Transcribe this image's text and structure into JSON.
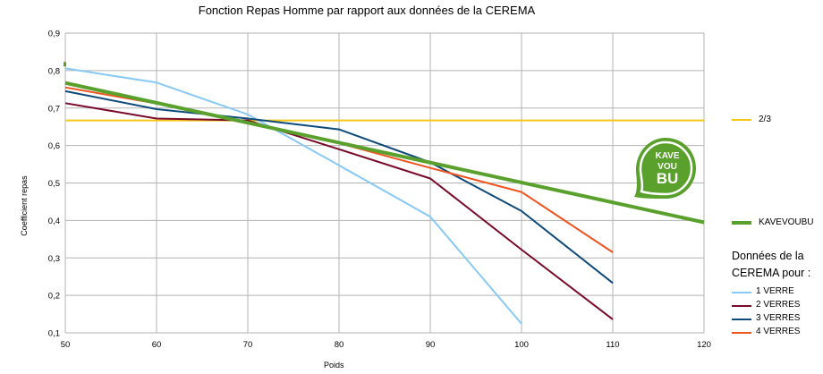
{
  "chart_data": {
    "type": "line",
    "title": "Fonction Repas Homme par rapport aux données de la CEREMA",
    "xlabel": "Poids",
    "ylabel": "Coefficient repas",
    "xlim": [
      50,
      120
    ],
    "ylim": [
      0.1,
      0.9
    ],
    "x_ticks": [
      "50",
      "60",
      "70",
      "80",
      "90",
      "100",
      "110",
      "120"
    ],
    "y_ticks": [
      "0,1",
      "0,2",
      "0,3",
      "0,4",
      "0,5",
      "0,6",
      "0,7",
      "0,8",
      "0,9"
    ],
    "grid": true,
    "legend_position": "right",
    "series": [
      {
        "name": "2/3",
        "color": "#f5c518",
        "width": 2,
        "points": [
          [
            50,
            0.667
          ],
          [
            120,
            0.667
          ]
        ]
      },
      {
        "name": "KAVEVOUBU",
        "color": "#5aa02c",
        "width": 4,
        "points": [
          [
            50,
            0.767
          ],
          [
            120,
            0.395
          ]
        ]
      },
      {
        "name": "1 VERRE",
        "color": "#87c9f5",
        "width": 2,
        "points": [
          [
            50,
            0.806
          ],
          [
            60,
            0.768
          ],
          [
            70,
            0.683
          ],
          [
            80,
            0.547
          ],
          [
            90,
            0.41
          ],
          [
            100,
            0.124
          ]
        ]
      },
      {
        "name": "2 VERRES",
        "color": "#7a0a2a",
        "width": 2,
        "points": [
          [
            50,
            0.713
          ],
          [
            60,
            0.672
          ],
          [
            70,
            0.667
          ],
          [
            80,
            0.59
          ],
          [
            90,
            0.512
          ],
          [
            100,
            0.322
          ],
          [
            110,
            0.136
          ]
        ]
      },
      {
        "name": "3 VERRES",
        "color": "#0e4a7a",
        "width": 2,
        "points": [
          [
            50,
            0.745
          ],
          [
            60,
            0.697
          ],
          [
            70,
            0.672
          ],
          [
            80,
            0.643
          ],
          [
            90,
            0.555
          ],
          [
            100,
            0.425
          ],
          [
            110,
            0.233
          ]
        ]
      },
      {
        "name": "4 VERRES",
        "color": "#f0541e",
        "width": 2,
        "points": [
          [
            50,
            0.755
          ],
          [
            60,
            0.712
          ],
          [
            70,
            0.66
          ],
          [
            80,
            0.606
          ],
          [
            90,
            0.54
          ],
          [
            100,
            0.476
          ],
          [
            110,
            0.315
          ]
        ]
      }
    ]
  },
  "legend": {
    "note_line1": "Données de la",
    "note_line2": "CEREMA pour :"
  },
  "logo": {
    "line1": "KAVE",
    "line2": "VOU",
    "line3": "BU",
    "color": "#5aa02c"
  }
}
